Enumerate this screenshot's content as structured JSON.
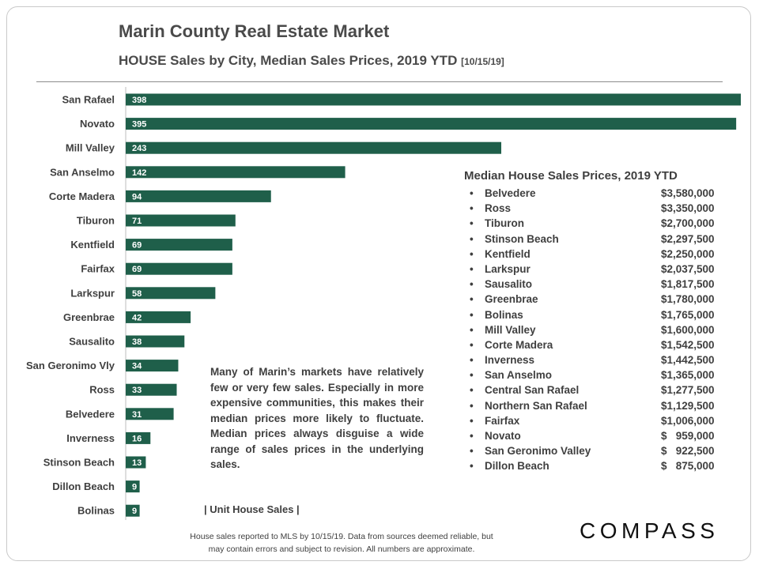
{
  "header": {
    "title": "Marin County Real Estate Market",
    "subtitle": "HOUSE Sales by City, Median Sales Prices, 2019 YTD",
    "date_tag": "[10/15/19]"
  },
  "chart_data": {
    "type": "bar",
    "orientation": "horizontal",
    "title": "HOUSE Sales by City, Median Sales Prices, 2019 YTD",
    "xlabel": "Unit House Sales",
    "ylabel": "",
    "xlim": [
      0,
      398
    ],
    "categories": [
      "San Rafael",
      "Novato",
      "Mill Valley",
      "San Anselmo",
      "Corte Madera",
      "Tiburon",
      "Kentfield",
      "Fairfax",
      "Larkspur",
      "Greenbrae",
      "Sausalito",
      "San Geronimo Vly",
      "Ross",
      "Belvedere",
      "Inverness",
      "Stinson Beach",
      "Dillon Beach",
      "Bolinas"
    ],
    "values": [
      398,
      395,
      243,
      142,
      94,
      71,
      69,
      69,
      58,
      42,
      38,
      34,
      33,
      31,
      16,
      13,
      9,
      9
    ],
    "bar_color": "#1f5f4a",
    "grid": false
  },
  "note": {
    "text": "Many of Marin’s markets have relatively few or very few sales. Especially in more expensive communities, this makes their median prices more likely to fluctuate. Median prices always disguise a wide range of sales prices in the underlying sales.",
    "axis_label": "| Unit House Sales |"
  },
  "median_prices": {
    "title": "Median House Sales Prices, 2019 YTD",
    "bullet": "•",
    "items": [
      {
        "city": "Belvedere",
        "price": "$3,580,000"
      },
      {
        "city": "Ross",
        "price": "$3,350,000"
      },
      {
        "city": "Tiburon",
        "price": "$2,700,000"
      },
      {
        "city": "Stinson Beach",
        "price": "$2,297,500"
      },
      {
        "city": "Kentfield",
        "price": "$2,250,000"
      },
      {
        "city": "Larkspur",
        "price": "$2,037,500"
      },
      {
        "city": "Sausalito",
        "price": "$1,817,500"
      },
      {
        "city": "Greenbrae",
        "price": "$1,780,000"
      },
      {
        "city": "Bolinas",
        "price": "$1,765,000"
      },
      {
        "city": "Mill Valley",
        "price": "$1,600,000"
      },
      {
        "city": "Corte Madera",
        "price": "$1,542,500"
      },
      {
        "city": "Inverness",
        "price": "$1,442,500"
      },
      {
        "city": "San Anselmo",
        "price": "$1,365,000"
      },
      {
        "city": "Central San Rafael",
        "price": "$1,277,500"
      },
      {
        "city": "Northern San Rafael",
        "price": "$1,129,500"
      },
      {
        "city": "Fairfax",
        "price": "$1,006,000"
      },
      {
        "city": "Novato",
        "price": "$   959,000"
      },
      {
        "city": "San Geronimo Valley",
        "price": "$   922,500"
      },
      {
        "city": "Dillon Beach",
        "price": "$   875,000"
      }
    ]
  },
  "footer": {
    "line1": "House sales reported to MLS by 10/15/19. Data from sources deemed reliable, but",
    "line2": "may contain errors and subject to revision. All numbers are approximate."
  },
  "brand": {
    "logo_text": "COMPASS"
  }
}
